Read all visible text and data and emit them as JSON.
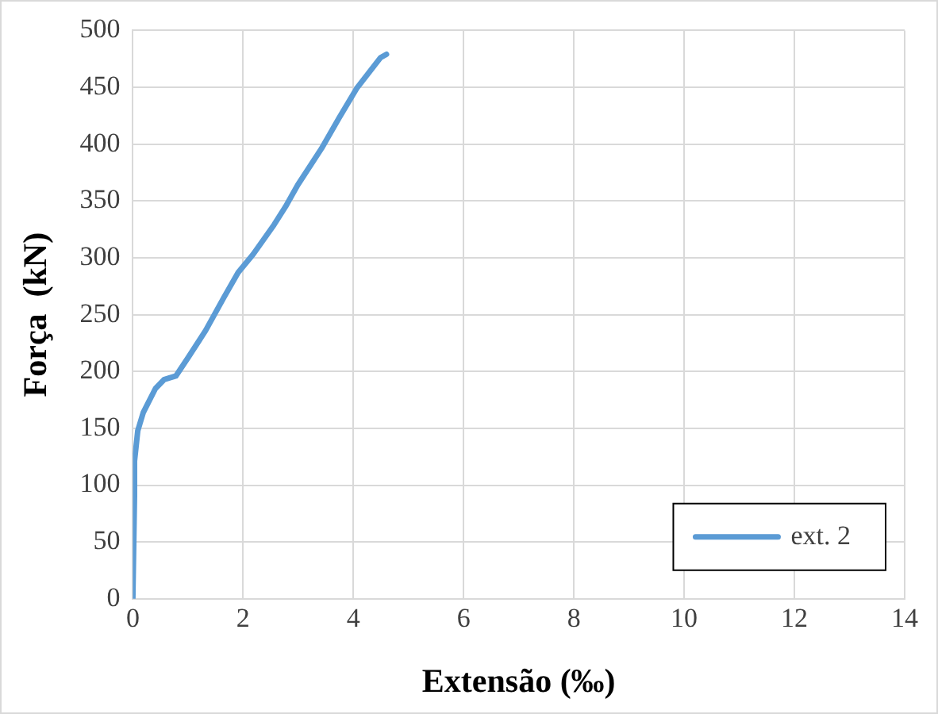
{
  "chart_data": {
    "type": "line",
    "xlabel": "Extensão (‰)",
    "ylabel": "Força  (kN)",
    "series": [
      {
        "name": "ext. 2",
        "color": "#5b9bd5",
        "x": [
          0,
          0.03,
          0.03,
          0.09,
          0.19,
          0.41,
          0.57,
          0.78,
          1.0,
          1.32,
          1.65,
          1.91,
          2.18,
          2.56,
          2.77,
          2.99,
          3.42,
          3.74,
          4.06,
          4.49,
          4.6
        ],
        "values": [
          0,
          90,
          121,
          148,
          164,
          185,
          193,
          196,
          212,
          236,
          265,
          287,
          303,
          329,
          345,
          364,
          396,
          423,
          449,
          476,
          479
        ]
      }
    ],
    "xlim": [
      0,
      14
    ],
    "xticks": [
      0,
      2,
      4,
      6,
      8,
      10,
      12,
      14
    ],
    "ylim": [
      0,
      500
    ],
    "yticks": [
      0,
      50,
      100,
      150,
      200,
      250,
      300,
      350,
      400,
      450,
      500
    ],
    "grid": true,
    "legend": "bottom right",
    "marker": "none",
    "line_style": "solid"
  }
}
